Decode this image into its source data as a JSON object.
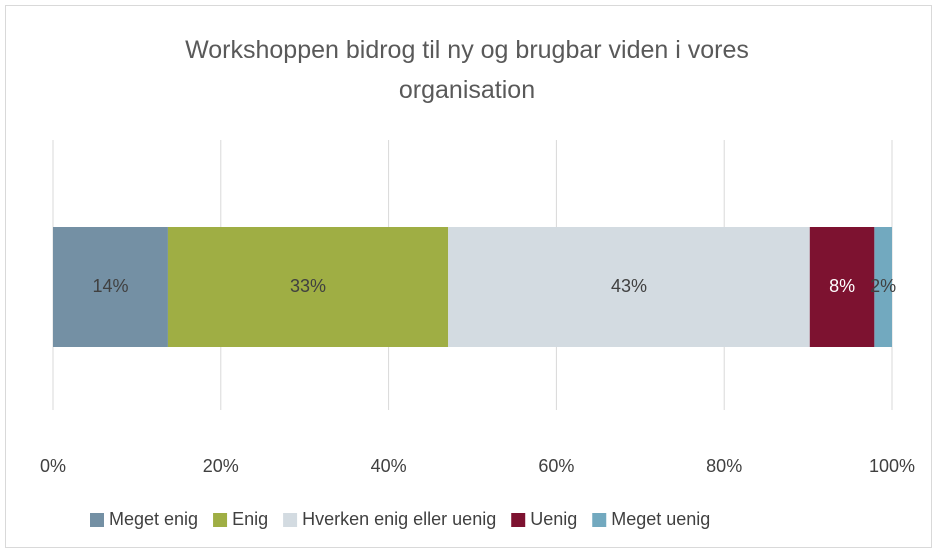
{
  "chart_data": {
    "type": "bar",
    "orientation": "horizontal",
    "stacked": true,
    "title": "Workshoppen bidrog til ny og brugbar viden i vores organisation",
    "series": [
      {
        "name": "Meget enig",
        "color": "#7490a4",
        "values": [
          13.7
        ],
        "value_labels": [
          "14%"
        ]
      },
      {
        "name": "Enig",
        "color": "#9fae44",
        "values": [
          33.4
        ],
        "value_labels": [
          "33%"
        ]
      },
      {
        "name": "Hverken enig eller uenig",
        "color": "#d3dbe1",
        "values": [
          43.1
        ],
        "value_labels": [
          "43%"
        ]
      },
      {
        "name": "Uenig",
        "color": "#7d1230",
        "values": [
          7.7
        ],
        "value_labels": [
          "8%"
        ]
      },
      {
        "name": "Meget uenig",
        "color": "#72a9bf",
        "values": [
          2.1
        ],
        "value_labels": [
          "2%"
        ]
      }
    ],
    "xlim": [
      0,
      100
    ],
    "xticks": [
      {
        "value": 0,
        "label": "0%"
      },
      {
        "value": 20,
        "label": "20%"
      },
      {
        "value": 40,
        "label": "40%"
      },
      {
        "value": 60,
        "label": "60%"
      },
      {
        "value": 80,
        "label": "80%"
      },
      {
        "value": 100,
        "label": "100%"
      }
    ],
    "grid": true,
    "legend": "bottom"
  }
}
